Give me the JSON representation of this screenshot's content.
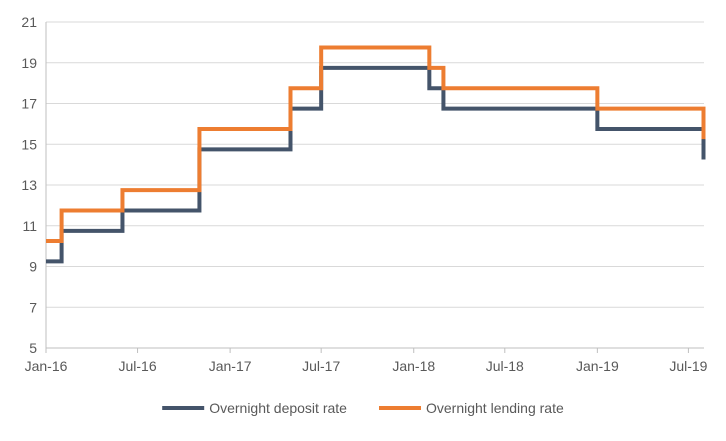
{
  "chart_data": {
    "type": "line",
    "step": true,
    "title": "",
    "xlabel": "",
    "ylabel": "",
    "ylim": [
      5,
      21
    ],
    "yticks": [
      5,
      7,
      9,
      11,
      13,
      15,
      17,
      19,
      21
    ],
    "xlim": [
      "2016-01-01",
      "2019-08-01"
    ],
    "xticks": [
      {
        "date": "2016-01-01",
        "label": "Jan-16"
      },
      {
        "date": "2016-07-01",
        "label": "Jul-16"
      },
      {
        "date": "2017-01-01",
        "label": "Jan-17"
      },
      {
        "date": "2017-07-01",
        "label": "Jul-17"
      },
      {
        "date": "2018-01-01",
        "label": "Jan-18"
      },
      {
        "date": "2018-07-01",
        "label": "Jul-18"
      },
      {
        "date": "2019-01-01",
        "label": "Jan-19"
      },
      {
        "date": "2019-07-01",
        "label": "Jul-19"
      }
    ],
    "grid": true,
    "legend_position": "bottom",
    "series": [
      {
        "name": "Overnight deposit rate",
        "color": "#44546a",
        "points": [
          [
            "2016-01-01",
            9.25
          ],
          [
            "2016-02-01",
            10.75
          ],
          [
            "2016-06-01",
            11.75
          ],
          [
            "2016-11-01",
            14.75
          ],
          [
            "2017-05-01",
            16.75
          ],
          [
            "2017-07-01",
            18.75
          ],
          [
            "2018-02-01",
            17.75
          ],
          [
            "2018-03-01",
            16.75
          ],
          [
            "2019-01-01",
            15.75
          ],
          [
            "2019-07-31",
            14.25
          ]
        ]
      },
      {
        "name": "Overnight lending rate",
        "color": "#ed7d31",
        "points": [
          [
            "2016-01-01",
            10.25
          ],
          [
            "2016-02-01",
            11.75
          ],
          [
            "2016-06-01",
            12.75
          ],
          [
            "2016-11-01",
            15.75
          ],
          [
            "2017-05-01",
            17.75
          ],
          [
            "2017-07-01",
            19.75
          ],
          [
            "2018-02-01",
            18.75
          ],
          [
            "2018-03-01",
            17.75
          ],
          [
            "2019-01-01",
            16.75
          ],
          [
            "2019-07-31",
            15.25
          ]
        ]
      }
    ]
  }
}
